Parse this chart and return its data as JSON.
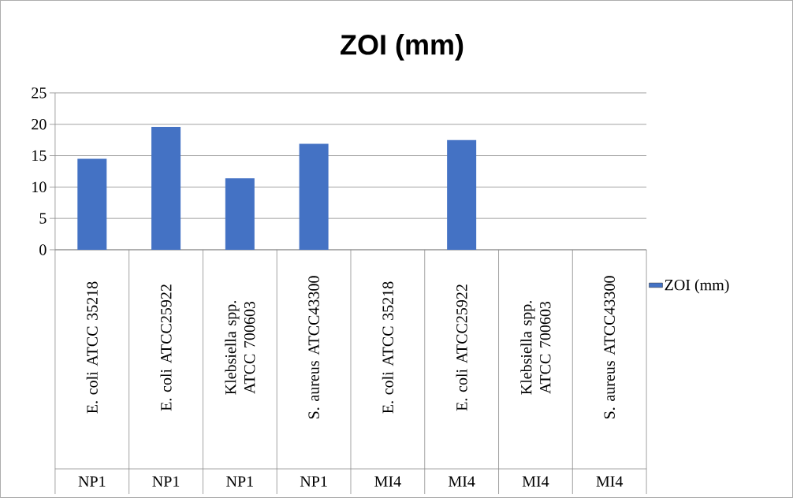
{
  "chart_data": {
    "type": "bar",
    "title": "ZOI (mm)",
    "categories": [
      "E. coli ATCC 35218",
      "E. coli ATCC25922",
      "Klebsiella spp. ATCC 700603",
      "S. aureus ATCC43300",
      "E. coli ATCC 35218",
      "E. coli ATCC25922",
      "Klebsiella spp. ATCC 700603",
      "S. aureus ATCC43300"
    ],
    "annotations": [
      "NP1",
      "NP1",
      "NP1",
      "NP1",
      "MI4",
      "MI4",
      "MI4",
      "MI4"
    ],
    "series": [
      {
        "name": "ZOI (mm)",
        "color": "#4472c4",
        "values": [
          14.5,
          19.6,
          11.4,
          16.9,
          null,
          17.5,
          null,
          null
        ]
      }
    ],
    "ylim": [
      0,
      25
    ],
    "yticks": [
      0,
      5,
      10,
      15,
      20,
      25
    ],
    "grid": "y",
    "legend": "right"
  }
}
